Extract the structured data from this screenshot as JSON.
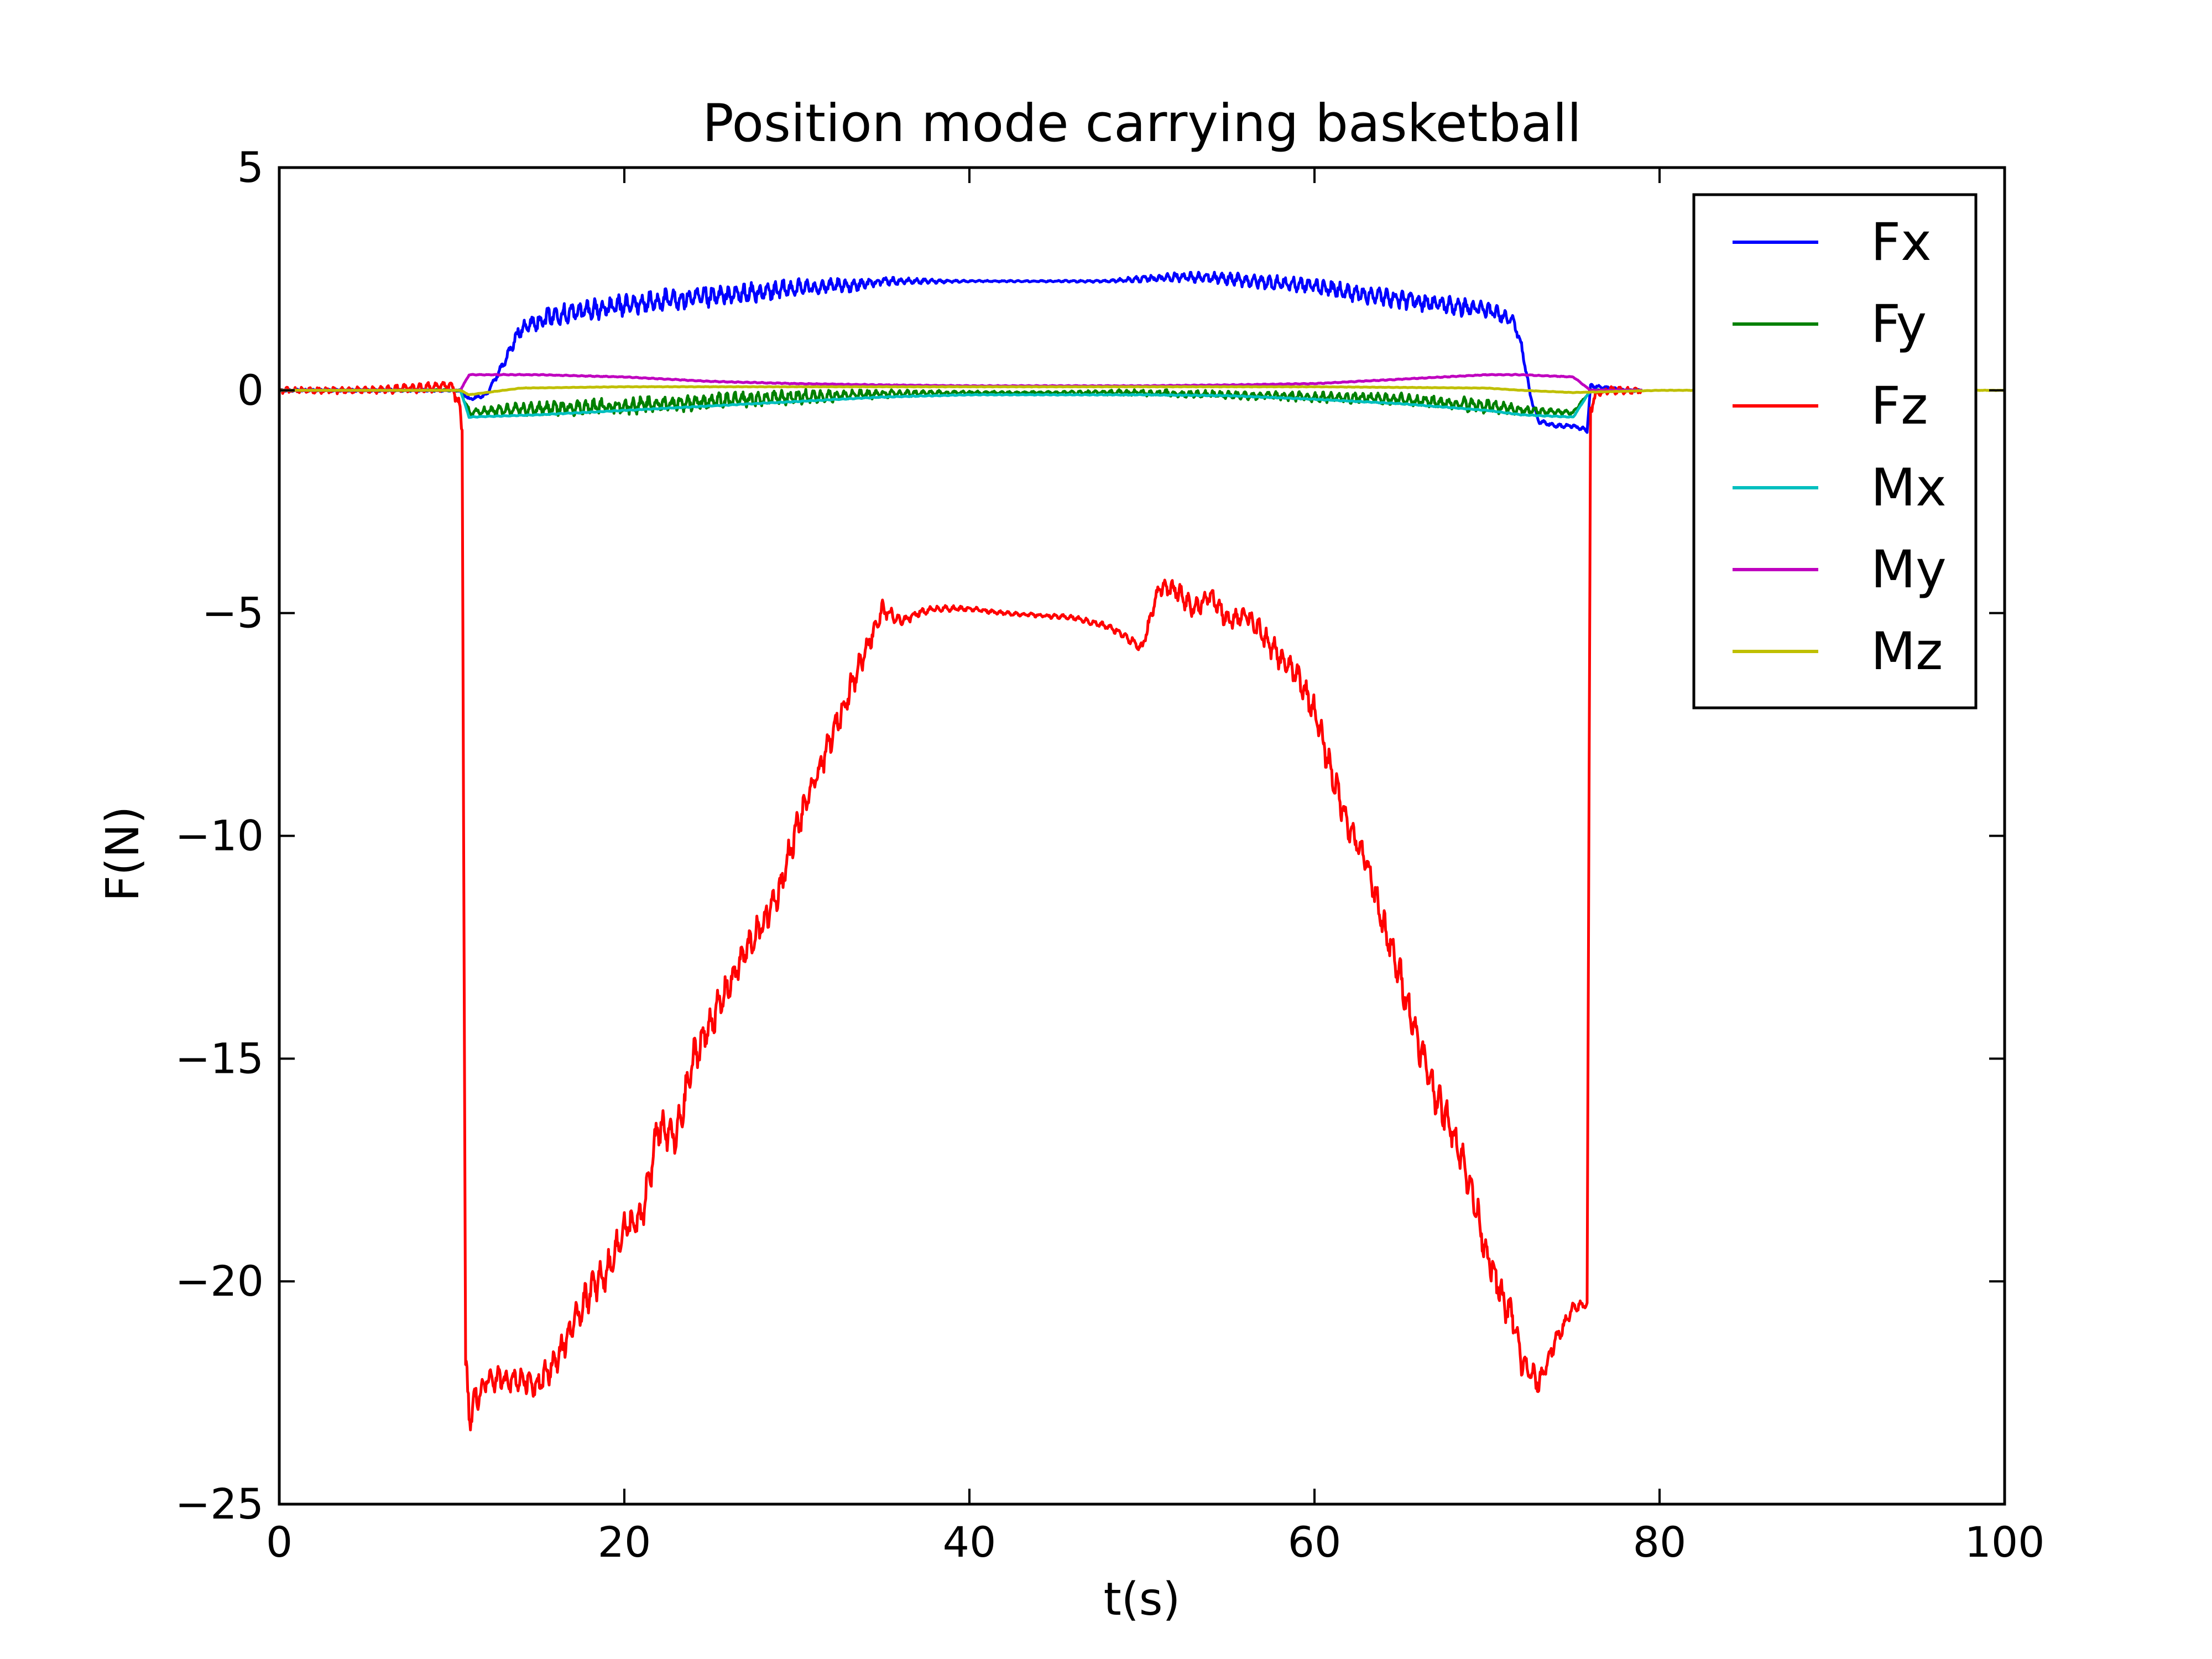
{
  "chart_data": {
    "type": "line",
    "title": "Position mode carrying basketball",
    "xlabel": "t(s)",
    "ylabel": "F(N)",
    "xlim": [
      0,
      100
    ],
    "ylim": [
      -25,
      5
    ],
    "x_ticks": [
      0,
      20,
      40,
      60,
      80,
      100
    ],
    "x_tick_labels": [
      "0",
      "20",
      "40",
      "60",
      "80",
      "100"
    ],
    "y_ticks": [
      5,
      0,
      -5,
      -10,
      -15,
      -20,
      -25
    ],
    "y_tick_labels": [
      "5",
      "0",
      "−5",
      "−10",
      "−15",
      "−20",
      "−25"
    ],
    "grid": false,
    "legend_position": "top-right",
    "series": [
      {
        "name": "Fx",
        "color": "#0000ff",
        "x": [
          0,
          5,
          10.5,
          11,
          12,
          13,
          14,
          16,
          18,
          20,
          22,
          25,
          28,
          30,
          33,
          35,
          38,
          40,
          45,
          48,
          50,
          52,
          55,
          58,
          60,
          62,
          65,
          68,
          70,
          71.5,
          72,
          72.5,
          73,
          74,
          75,
          75.8,
          76,
          78,
          79
        ],
        "y": [
          0,
          0,
          0,
          -0.2,
          -0.1,
          0.6,
          1.4,
          1.7,
          1.8,
          1.9,
          2.0,
          2.1,
          2.2,
          2.3,
          2.35,
          2.45,
          2.45,
          2.45,
          2.45,
          2.45,
          2.5,
          2.55,
          2.5,
          2.4,
          2.35,
          2.2,
          2.05,
          1.9,
          1.8,
          1.6,
          1.0,
          -0.1,
          -0.7,
          -0.8,
          -0.8,
          -0.9,
          0.1,
          0,
          0
        ],
        "jitter": [
          0.03,
          0.03,
          0.03,
          0.05,
          0.05,
          0.1,
          0.22,
          0.25,
          0.27,
          0.28,
          0.28,
          0.27,
          0.25,
          0.22,
          0.17,
          0.1,
          0.05,
          0.02,
          0.02,
          0.03,
          0.08,
          0.12,
          0.15,
          0.18,
          0.2,
          0.22,
          0.23,
          0.22,
          0.22,
          0.15,
          0.1,
          0.08,
          0.05,
          0.05,
          0.05,
          0.05,
          0.05,
          0.03,
          0.03
        ]
      },
      {
        "name": "Fy",
        "color": "#008000",
        "x": [
          0,
          5,
          10.5,
          11,
          13,
          16,
          20,
          25,
          30,
          35,
          40,
          45,
          50,
          55,
          60,
          65,
          70,
          72,
          75,
          76,
          79
        ],
        "y": [
          0,
          0,
          0,
          -0.5,
          -0.45,
          -0.4,
          -0.35,
          -0.25,
          -0.15,
          -0.08,
          -0.05,
          -0.05,
          -0.05,
          -0.1,
          -0.15,
          -0.2,
          -0.35,
          -0.45,
          -0.5,
          0,
          0
        ],
        "jitter": [
          0.02,
          0.02,
          0.02,
          0.1,
          0.15,
          0.18,
          0.2,
          0.2,
          0.18,
          0.1,
          0.04,
          0.03,
          0.08,
          0.1,
          0.12,
          0.15,
          0.18,
          0.12,
          0.05,
          0.02,
          0.02
        ]
      },
      {
        "name": "Fz",
        "color": "#ff0000",
        "x": [
          0,
          5,
          8,
          10,
          10.4,
          10.6,
          10.8,
          11,
          12,
          14,
          15,
          16,
          17,
          18,
          19,
          20,
          21,
          22,
          23,
          24,
          25,
          26,
          27,
          28,
          29,
          30,
          31,
          32,
          33,
          34,
          35,
          36,
          37,
          38,
          40,
          42,
          44,
          46,
          48,
          49,
          50,
          51,
          52,
          53,
          54,
          55,
          56,
          57,
          58,
          59,
          60,
          61,
          62,
          63,
          64,
          65,
          66,
          67,
          68,
          69,
          70,
          71,
          71.5,
          72,
          73,
          74,
          75,
          75.8,
          76,
          76.3,
          77,
          78,
          79
        ],
        "y": [
          0,
          0,
          0.05,
          0.1,
          -0.3,
          -0.8,
          -22,
          -23,
          -22.2,
          -22.2,
          -22.3,
          -21.8,
          -21.0,
          -20.2,
          -19.8,
          -18.8,
          -18.6,
          -16.5,
          -16.8,
          -15.0,
          -14.2,
          -13.4,
          -12.6,
          -12.0,
          -11.2,
          -9.8,
          -8.8,
          -7.8,
          -6.8,
          -5.8,
          -4.9,
          -5.2,
          -5.0,
          -4.9,
          -4.9,
          -5.0,
          -5.05,
          -5.1,
          -5.3,
          -5.5,
          -5.8,
          -4.4,
          -4.5,
          -4.9,
          -4.6,
          -5.2,
          -5.0,
          -5.5,
          -6.0,
          -6.4,
          -7.2,
          -8.6,
          -9.8,
          -10.6,
          -12.0,
          -13.2,
          -14.6,
          -15.8,
          -16.6,
          -17.8,
          -19.4,
          -20.5,
          -20.8,
          -21.8,
          -22.3,
          -21.3,
          -20.6,
          -20.5,
          -0.4,
          -0.1,
          0,
          0,
          0
        ],
        "jitter": [
          0.08,
          0.08,
          0.12,
          0.12,
          0.3,
          0.3,
          0.5,
          0.5,
          0.3,
          0.3,
          0.35,
          0.35,
          0.4,
          0.45,
          0.45,
          0.45,
          0.45,
          0.5,
          0.5,
          0.45,
          0.45,
          0.4,
          0.4,
          0.4,
          0.4,
          0.4,
          0.35,
          0.35,
          0.35,
          0.3,
          0.25,
          0.15,
          0.1,
          0.08,
          0.06,
          0.05,
          0.05,
          0.06,
          0.08,
          0.1,
          0.15,
          0.2,
          0.25,
          0.25,
          0.25,
          0.25,
          0.25,
          0.3,
          0.3,
          0.35,
          0.35,
          0.4,
          0.4,
          0.4,
          0.45,
          0.45,
          0.45,
          0.45,
          0.45,
          0.45,
          0.45,
          0.4,
          0.4,
          0.35,
          0.3,
          0.2,
          0.15,
          0.1,
          0.2,
          0.1,
          0.1,
          0.08,
          0.08
        ]
      },
      {
        "name": "Mx",
        "color": "#00bfbf",
        "x": [
          0,
          5,
          10.5,
          11,
          15,
          20,
          25,
          30,
          35,
          40,
          45,
          50,
          55,
          60,
          65,
          70,
          72,
          75,
          76,
          79
        ],
        "y": [
          0,
          0,
          0,
          -0.6,
          -0.55,
          -0.45,
          -0.35,
          -0.25,
          -0.15,
          -0.1,
          -0.1,
          -0.1,
          -0.12,
          -0.2,
          -0.3,
          -0.45,
          -0.55,
          -0.6,
          0,
          0
        ],
        "jitter": [
          0.01,
          0.01,
          0.01,
          0.01,
          0.01,
          0.01,
          0.01,
          0.01,
          0.01,
          0.01,
          0.01,
          0.01,
          0.01,
          0.01,
          0.01,
          0.01,
          0.01,
          0.01,
          0.01,
          0.01
        ]
      },
      {
        "name": "My",
        "color": "#bf00bf",
        "x": [
          0,
          5,
          10.5,
          11,
          15,
          20,
          25,
          30,
          35,
          40,
          45,
          50,
          55,
          60,
          65,
          70,
          72,
          75,
          76,
          79
        ],
        "y": [
          0,
          0,
          0,
          0.35,
          0.35,
          0.3,
          0.2,
          0.15,
          0.12,
          0.1,
          0.1,
          0.1,
          0.12,
          0.15,
          0.25,
          0.35,
          0.35,
          0.3,
          0,
          0
        ],
        "jitter": [
          0.01,
          0.01,
          0.01,
          0.01,
          0.01,
          0.01,
          0.01,
          0.01,
          0.01,
          0.01,
          0.01,
          0.01,
          0.01,
          0.01,
          0.01,
          0.01,
          0.01,
          0.01,
          0.01,
          0.01
        ]
      },
      {
        "name": "Mz",
        "color": "#bfbf00",
        "x": [
          0,
          10.5,
          11,
          14,
          20,
          30,
          40,
          50,
          60,
          70,
          72,
          75,
          80,
          100
        ],
        "y": [
          0,
          0,
          -0.1,
          0.05,
          0.08,
          0.08,
          0.08,
          0.08,
          0.08,
          0.05,
          0,
          -0.05,
          0,
          0
        ],
        "jitter": [
          0.005,
          0.005,
          0.005,
          0.005,
          0.005,
          0.005,
          0.005,
          0.005,
          0.005,
          0.005,
          0.005,
          0.005,
          0.005,
          0.005
        ]
      }
    ]
  }
}
